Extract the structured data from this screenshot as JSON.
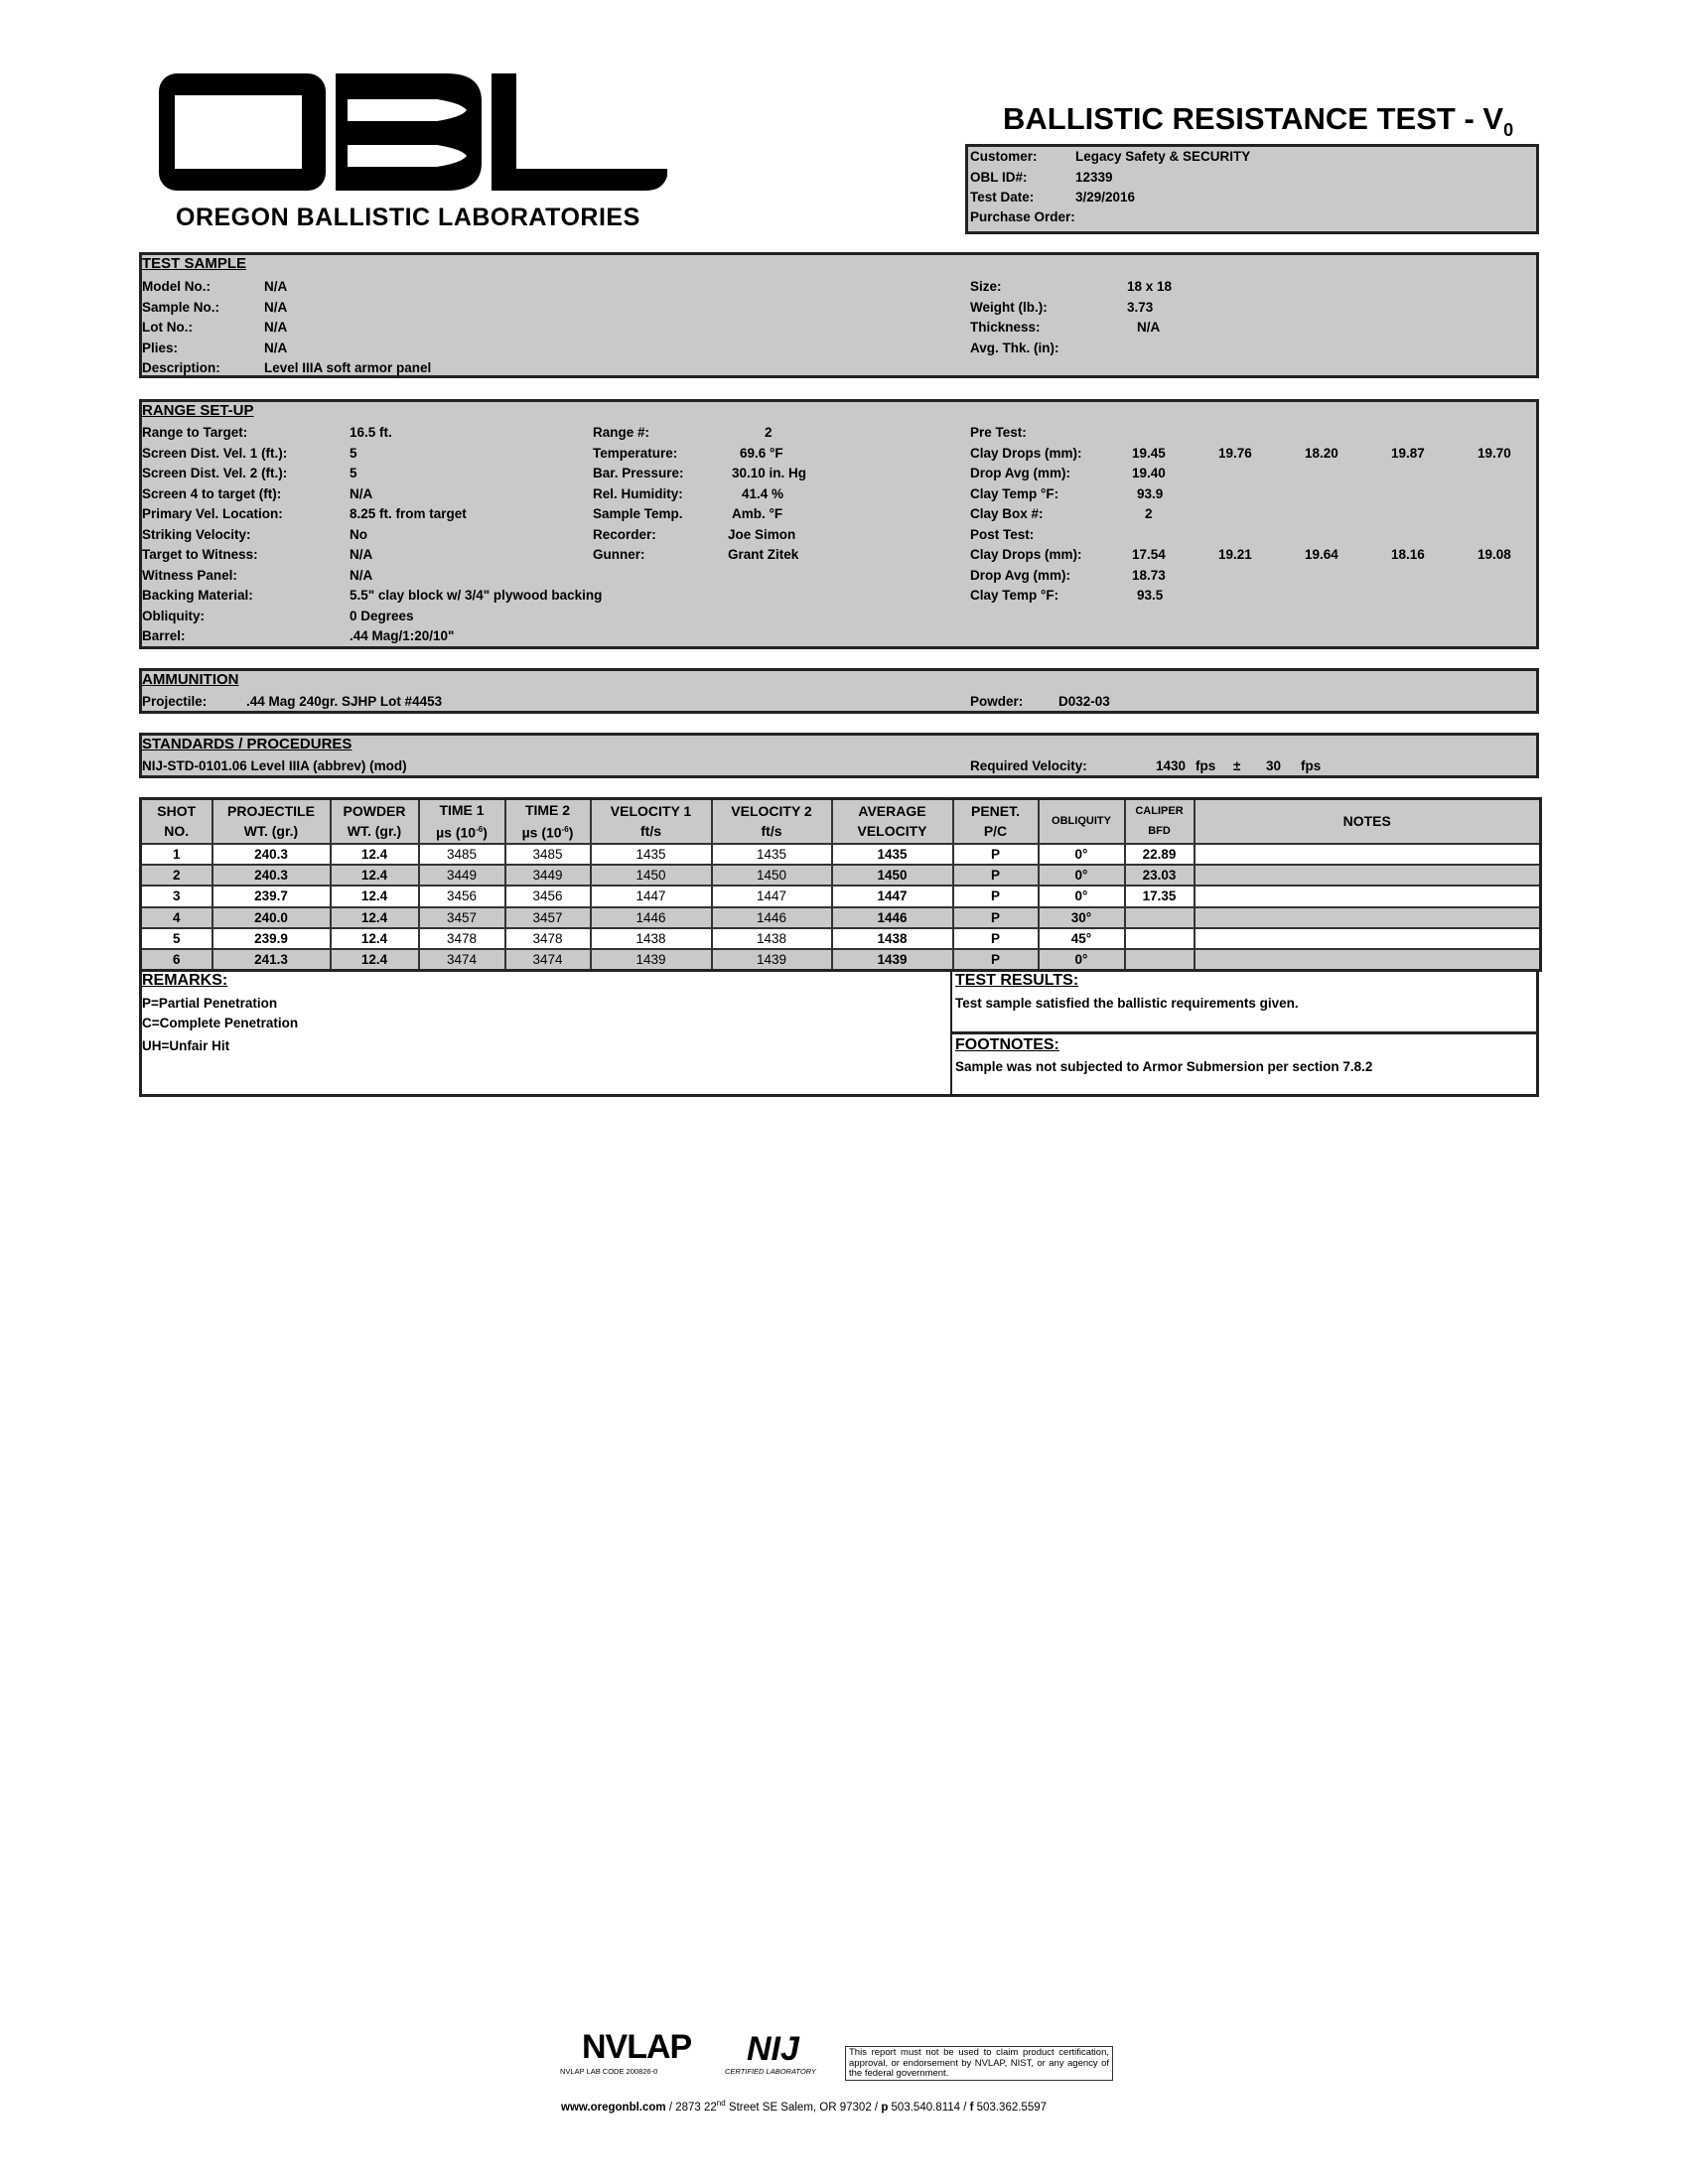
{
  "header": {
    "logo_letters": "OBL",
    "lab_name": "OREGON BALLISTIC LABORATORIES",
    "title": "BALLISTIC RESISTANCE TEST - V",
    "title_sub": "0"
  },
  "customer": {
    "customer_label": "Customer:",
    "customer": "Legacy Safety & SECURITY",
    "id_label": "OBL ID#:",
    "id": "12339",
    "date_label": "Test Date:",
    "date": "3/29/2016",
    "po_label": "Purchase Order:",
    "po": ""
  },
  "test_sample": {
    "heading": "TEST SAMPLE",
    "left": [
      {
        "label": "Model No.:",
        "value": "N/A"
      },
      {
        "label": "Sample No.:",
        "value": "N/A"
      },
      {
        "label": "Lot No.:",
        "value": "N/A"
      },
      {
        "label": "Plies:",
        "value": "N/A"
      },
      {
        "label": "Description:",
        "value": "Level IIIA soft armor panel"
      }
    ],
    "right": [
      {
        "label": "Size:",
        "value": "18 x 18"
      },
      {
        "label": "Weight (lb.):",
        "value": "3.73"
      },
      {
        "label": "Thickness:",
        "value": "N/A"
      },
      {
        "label": "Avg. Thk. (in):",
        "value": ""
      }
    ]
  },
  "range": {
    "heading": "RANGE SET-UP",
    "left": [
      {
        "label": "Range to Target:",
        "value": "16.5 ft."
      },
      {
        "label": "Screen Dist. Vel. 1 (ft.):",
        "value": "5"
      },
      {
        "label": "Screen Dist. Vel. 2 (ft.):",
        "value": "5"
      },
      {
        "label": "Screen 4 to target (ft):",
        "value": "N/A"
      },
      {
        "label": "Primary Vel. Location:",
        "value": "8.25 ft. from target"
      },
      {
        "label": "Striking Velocity:",
        "value": "No"
      },
      {
        "label": "Target to Witness:",
        "value": "N/A"
      },
      {
        "label": "Witness Panel:",
        "value": "N/A"
      },
      {
        "label": "Backing Material:",
        "value": "5.5\" clay block w/ 3/4\" plywood backing"
      },
      {
        "label": "Obliquity:",
        "value": "0 Degrees"
      },
      {
        "label": "Barrel:",
        "value": ".44 Mag/1:20/10\""
      }
    ],
    "middle": [
      {
        "label": "Range #:",
        "value": "2"
      },
      {
        "label": "Temperature:",
        "value": "69.6  °F"
      },
      {
        "label": "Bar. Pressure:",
        "value": "30.10 in. Hg"
      },
      {
        "label": "Rel. Humidity:",
        "value": "41.4  %"
      },
      {
        "label": "Sample Temp.",
        "value": "Amb.  °F"
      },
      {
        "label": "Recorder:",
        "value": "Joe Simon"
      },
      {
        "label": "Gunner:",
        "value": "Grant Zitek"
      }
    ],
    "pre_test_label": "Pre Test:",
    "pre_drops_label": "Clay Drops (mm):",
    "pre_drops": [
      "19.45",
      "19.76",
      "18.20",
      "19.87",
      "19.70"
    ],
    "pre_avg_label": "Drop Avg (mm):",
    "pre_avg": "19.40",
    "pre_temp_label": "Clay Temp °F:",
    "pre_temp": "93.9",
    "box_label": "Clay Box #:",
    "box": "2",
    "post_test_label": "Post Test:",
    "post_drops_label": "Clay Drops (mm):",
    "post_drops": [
      "17.54",
      "19.21",
      "19.64",
      "18.16",
      "19.08"
    ],
    "post_avg_label": "Drop Avg (mm):",
    "post_avg": "18.73",
    "post_temp_label": "Clay Temp °F:",
    "post_temp": "93.5"
  },
  "ammunition": {
    "heading": "AMMUNITION",
    "projectile_label": "Projectile:",
    "projectile": ".44 Mag 240gr. SJHP Lot #4453",
    "powder_label": "Powder:",
    "powder": "D032-03"
  },
  "standards": {
    "heading": "STANDARDS / PROCEDURES",
    "standard": "NIJ-STD-0101.06 Level IIIA (abbrev) (mod)",
    "req_label": "Required Velocity:",
    "req_value": "1430",
    "req_unit": "fps",
    "pm": "±",
    "tolerance": "30",
    "tol_unit": "fps"
  },
  "table": {
    "headers": [
      [
        "SHOT",
        "NO."
      ],
      [
        "PROJECTILE",
        "WT. (gr.)"
      ],
      [
        "POWDER",
        "WT. (gr.)"
      ],
      [
        "TIME 1",
        "µs (10",
        "-6",
        ")"
      ],
      [
        "TIME 2",
        "µs (10",
        "-6",
        ")"
      ],
      [
        "VELOCITY 1",
        "ft/s"
      ],
      [
        "VELOCITY 2",
        "ft/s"
      ],
      [
        "AVERAGE",
        "VELOCITY"
      ],
      [
        "PENET.",
        "P/C"
      ],
      [
        "OBLIQUITY"
      ],
      [
        "CALIPER",
        "BFD"
      ],
      [
        "NOTES"
      ]
    ],
    "rows": [
      [
        "1",
        "240.3",
        "12.4",
        "3485",
        "3485",
        "1435",
        "1435",
        "1435",
        "P",
        "0°",
        "22.89",
        ""
      ],
      [
        "2",
        "240.3",
        "12.4",
        "3449",
        "3449",
        "1450",
        "1450",
        "1450",
        "P",
        "0°",
        "23.03",
        ""
      ],
      [
        "3",
        "239.7",
        "12.4",
        "3456",
        "3456",
        "1447",
        "1447",
        "1447",
        "P",
        "0°",
        "17.35",
        ""
      ],
      [
        "4",
        "240.0",
        "12.4",
        "3457",
        "3457",
        "1446",
        "1446",
        "1446",
        "P",
        "30°",
        "",
        ""
      ],
      [
        "5",
        "239.9",
        "12.4",
        "3478",
        "3478",
        "1438",
        "1438",
        "1438",
        "P",
        "45°",
        "",
        ""
      ],
      [
        "6",
        "241.3",
        "12.4",
        "3474",
        "3474",
        "1439",
        "1439",
        "1439",
        "P",
        "0°",
        "",
        ""
      ]
    ]
  },
  "remarks": {
    "heading": "REMARKS:",
    "lines": [
      "P=Partial Penetration",
      "C=Complete Penetration",
      "UH=Unfair Hit"
    ]
  },
  "results": {
    "heading": "TEST RESULTS:",
    "text": "Test sample satisfied the ballistic requirements given."
  },
  "footnotes": {
    "heading": "FOOTNOTES:",
    "text": "Sample was not subjected to Armor Submersion per section 7.8.2"
  },
  "footer": {
    "nvlap": "NVLAP",
    "nvlap_code": "NVLAP LAB CODE 200826-0",
    "nij": "NIJ",
    "nij_sub": "CERTIFIED LABORATORY",
    "disclaimer": "This report must not be used to claim product certification, approval, or endorsement by NVLAP, NIST, or any agency of the federal government.",
    "web": "www.oregonbl.com",
    "addr_pre": " / 2873 22",
    "addr_sup": "nd",
    "addr_post": " Street SE Salem, OR 97302 / ",
    "p": "p",
    "phone": " 503.540.8114 / ",
    "f": "f",
    "fax": " 503.362.5597"
  }
}
